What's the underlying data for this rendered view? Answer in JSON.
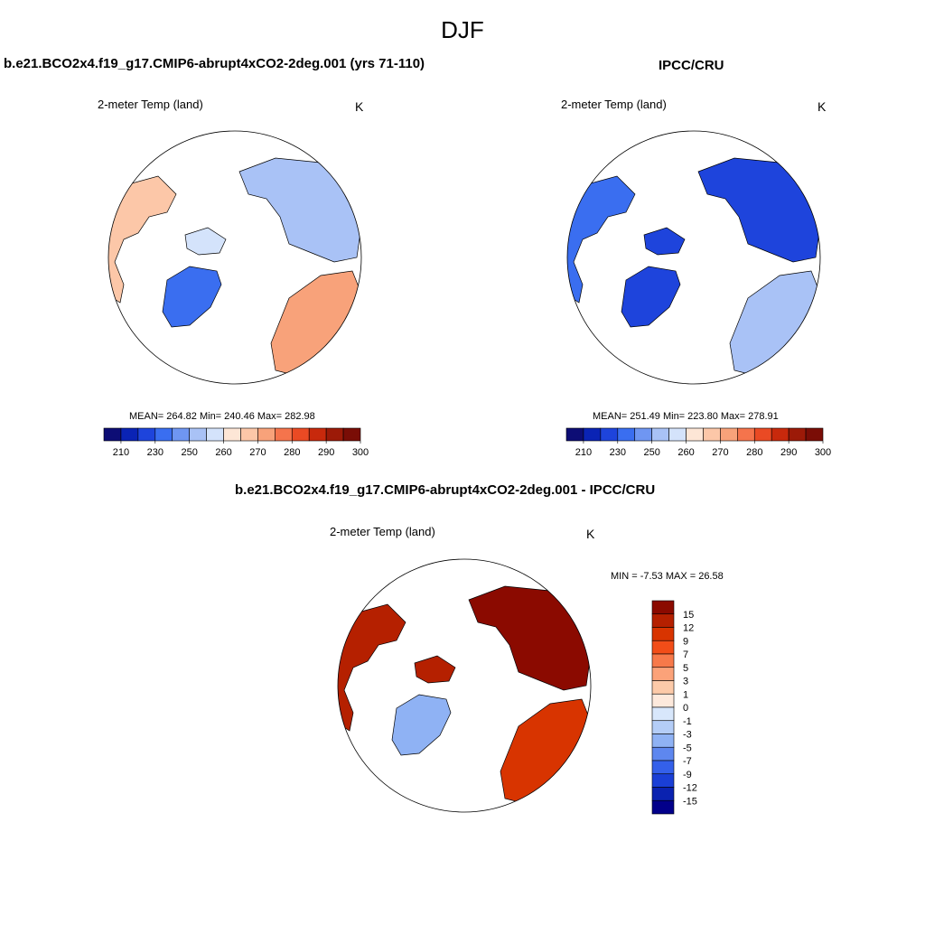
{
  "title": "DJF",
  "panels": [
    {
      "title": "b.e21.BCO2x4.f19_g17.CMIP6-abrupt4xCO2-2deg.001 (yrs 71-110)",
      "variable": "2-meter Temp (land)",
      "units": "K",
      "stats": "MEAN= 264.82  Min= 240.46  Max= 282.98"
    },
    {
      "title": "IPCC/CRU",
      "variable": "2-meter Temp (land)",
      "units": "K",
      "stats": "MEAN= 251.49  Min= 223.80  Max= 278.91"
    },
    {
      "title": "b.e21.BCO2x4.f19_g17.CMIP6-abrupt4xCO2-2deg.001 - IPCC/CRU",
      "variable": "2-meter Temp (land)",
      "units": "K",
      "stats": "MIN =  -7.53 MAX =  26.58"
    }
  ],
  "temperature_colorbar": {
    "labels": [
      "210",
      "230",
      "250",
      "260",
      "270",
      "280",
      "290",
      "300"
    ],
    "colors": [
      "#0d0d75",
      "#0a23b5",
      "#1e44dc",
      "#3a6ef0",
      "#6f96f2",
      "#a9c2f6",
      "#d4e3fb",
      "#fde6d6",
      "#fcc7a8",
      "#f8a27a",
      "#f5744c",
      "#ea4a24",
      "#c8290c",
      "#9c1a08",
      "#7a0d06"
    ]
  },
  "difference_colorbar": {
    "labels": [
      "15",
      "12",
      "9",
      "7",
      "5",
      "3",
      "1",
      "0",
      "-1",
      "-3",
      "-5",
      "-7",
      "-9",
      "-12",
      "-15"
    ],
    "colors": [
      "#8b0a00",
      "#b52000",
      "#d83400",
      "#f24d18",
      "#f7794a",
      "#fba279",
      "#fccaa9",
      "#fde9dc",
      "#d8e7fb",
      "#b4cdf7",
      "#8fb2f4",
      "#5e87ef",
      "#3460ea",
      "#1a3fd6",
      "#0a22b0",
      "#02008a"
    ]
  }
}
